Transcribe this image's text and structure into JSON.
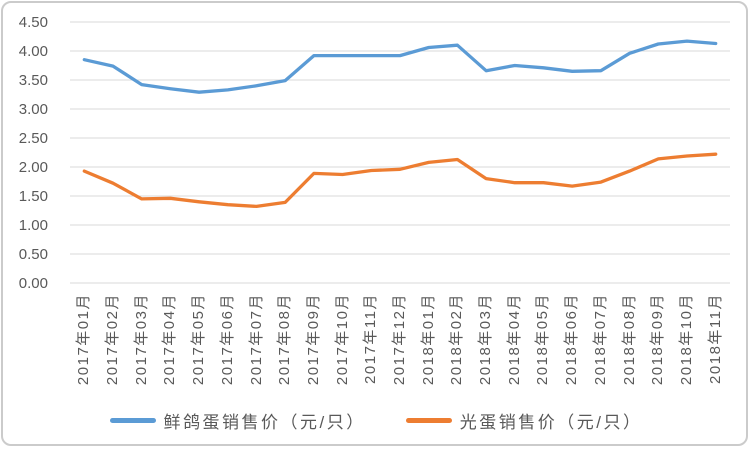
{
  "chart_data": {
    "type": "line",
    "categories": [
      "2017年01月",
      "2017年02月",
      "2017年03月",
      "2017年04月",
      "2017年05月",
      "2017年06月",
      "2017年07月",
      "2017年08月",
      "2017年09月",
      "2017年10月",
      "2017年11月",
      "2017年12月",
      "2018年01月",
      "2018年02月",
      "2018年03月",
      "2018年04月",
      "2018年05月",
      "2018年06月",
      "2018年07月",
      "2018年08月",
      "2018年09月",
      "2018年10月",
      "2018年11月"
    ],
    "series": [
      {
        "name": "鲜鸽蛋销售价（元/只）",
        "color": "#5B9BD5",
        "values": [
          3.85,
          3.74,
          3.42,
          3.35,
          3.29,
          3.33,
          3.4,
          3.49,
          3.92,
          3.92,
          3.92,
          3.92,
          4.06,
          4.1,
          3.66,
          3.75,
          3.71,
          3.65,
          3.66,
          3.96,
          4.12,
          4.17,
          4.13
        ]
      },
      {
        "name": "光蛋销售价（元/只）",
        "color": "#ED7D31",
        "values": [
          1.93,
          1.72,
          1.45,
          1.46,
          1.4,
          1.35,
          1.32,
          1.39,
          1.89,
          1.87,
          1.94,
          1.96,
          2.08,
          2.13,
          1.8,
          1.73,
          1.73,
          1.67,
          1.74,
          1.93,
          2.14,
          2.19,
          2.22
        ]
      }
    ],
    "title": "",
    "xlabel": "",
    "ylabel": "",
    "ylim": [
      0,
      4.5
    ],
    "ytick_step": 0.5,
    "ytick_labels": [
      "0.00",
      "0.50",
      "1.00",
      "1.50",
      "2.00",
      "2.50",
      "3.00",
      "3.50",
      "4.00",
      "4.50"
    ],
    "grid": "horizontal",
    "gridline_color": "#d9d9d9",
    "legend_position": "bottom"
  }
}
